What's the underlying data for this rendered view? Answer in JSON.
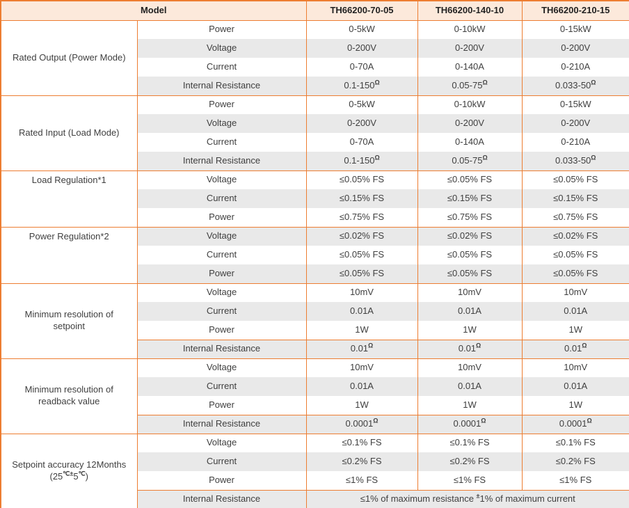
{
  "header": {
    "model_label": "Model",
    "columns": [
      "TH66200-70-05",
      "TH66200-140-10",
      "TH66200-210-15"
    ]
  },
  "groups": [
    {
      "label": [
        "Rated Output (Power Mode)"
      ],
      "rows": [
        {
          "param": "Power",
          "values": [
            "0-5kW",
            "0-10kW",
            "0-15kW"
          ]
        },
        {
          "param": "Voltage",
          "values": [
            "0-200V",
            "0-200V",
            "0-200V"
          ]
        },
        {
          "param": "Current",
          "values": [
            "0-70A",
            "0-140A",
            "0-210A"
          ]
        },
        {
          "param": "Internal Resistance",
          "values": [
            "0.1-150^Ω",
            "0.05-75^Ω",
            "0.033-50^Ω"
          ]
        }
      ]
    },
    {
      "label": [
        "Rated Input (Load Mode)"
      ],
      "rows": [
        {
          "param": "Power",
          "values": [
            "0-5kW",
            "0-10kW",
            "0-15kW"
          ]
        },
        {
          "param": "Voltage",
          "values": [
            "0-200V",
            "0-200V",
            "0-200V"
          ]
        },
        {
          "param": "Current",
          "values": [
            "0-70A",
            "0-140A",
            "0-210A"
          ]
        },
        {
          "param": "Internal Resistance",
          "values": [
            "0.1-150^Ω",
            "0.05-75^Ω",
            "0.033-50^Ω"
          ]
        }
      ]
    },
    {
      "label": [
        "Load Regulation*1"
      ],
      "label_valign": "top",
      "rows": [
        {
          "param": "Voltage",
          "values": [
            "≤0.05% FS",
            "≤0.05% FS",
            "≤0.05% FS"
          ]
        },
        {
          "param": "Current",
          "values": [
            "≤0.15% FS",
            "≤0.15% FS",
            "≤0.15% FS"
          ]
        },
        {
          "param": "Power",
          "values": [
            "≤0.75% FS",
            "≤0.75% FS",
            "≤0.75% FS"
          ]
        }
      ]
    },
    {
      "label": [
        "Power Regulation*2"
      ],
      "label_valign": "top",
      "rows": [
        {
          "param": "Voltage",
          "values": [
            "≤0.02% FS",
            "≤0.02% FS",
            "≤0.02% FS"
          ]
        },
        {
          "param": "Current",
          "values": [
            "≤0.05% FS",
            "≤0.05% FS",
            "≤0.05% FS"
          ]
        },
        {
          "param": "Power",
          "values": [
            "≤0.05% FS",
            "≤0.05% FS",
            "≤0.05% FS"
          ]
        }
      ]
    },
    {
      "label": [
        "Minimum resolution of",
        "setpoint"
      ],
      "ir_separator": true,
      "rows": [
        {
          "param": "Voltage",
          "values": [
            "10mV",
            "10mV",
            "10mV"
          ]
        },
        {
          "param": "Current",
          "values": [
            "0.01A",
            "0.01A",
            "0.01A"
          ]
        },
        {
          "param": "Power",
          "values": [
            "1W",
            "1W",
            "1W"
          ]
        },
        {
          "param": "Internal Resistance",
          "values": [
            "0.01^Ω",
            "0.01^Ω",
            "0.01^Ω"
          ]
        }
      ]
    },
    {
      "label": [
        "Minimum resolution of",
        "readback value"
      ],
      "ir_separator": true,
      "rows": [
        {
          "param": "Voltage",
          "values": [
            "10mV",
            "10mV",
            "10mV"
          ]
        },
        {
          "param": "Current",
          "values": [
            "0.01A",
            "0.01A",
            "0.01A"
          ]
        },
        {
          "param": "Power",
          "values": [
            "1W",
            "1W",
            "1W"
          ]
        },
        {
          "param": "Internal Resistance",
          "values": [
            "0.0001^Ω",
            "0.0001^Ω",
            "0.0001^Ω"
          ]
        }
      ]
    },
    {
      "label": [
        "Setpoint accuracy 12Months",
        "(25^℃±^5^℃^)"
      ],
      "ir_separator": true,
      "rows": [
        {
          "param": "Voltage",
          "values": [
            "≤0.1% FS",
            "≤0.1% FS",
            "≤0.1% FS"
          ]
        },
        {
          "param": "Current",
          "values": [
            "≤0.2% FS",
            "≤0.2% FS",
            "≤0.2% FS"
          ]
        },
        {
          "param": "Power",
          "values": [
            "≤1% FS",
            "≤1% FS",
            "≤1% FS"
          ]
        },
        {
          "param": "Internal Resistance",
          "merged_value": "≤1% of maximum resistance ^±^1% of maximum current"
        }
      ]
    }
  ],
  "colors": {
    "border_orange": "#ED7D31",
    "header_bg": "#FCE9DB",
    "shade_bg": "#E9E9E9",
    "text": "#3F3F3F"
  }
}
